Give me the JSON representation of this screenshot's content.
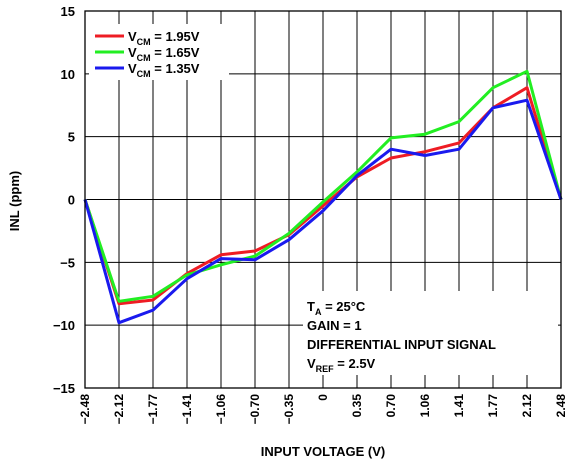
{
  "chart_data": {
    "type": "line",
    "title": "",
    "xlabel": "INPUT VOLTAGE (V)",
    "ylabel": "INL (ppm)",
    "ylim": [
      -15,
      15
    ],
    "yticks": [
      -15,
      -10,
      -5,
      0,
      5,
      10,
      15
    ],
    "ytick_labels": [
      "−15",
      "−10",
      "−5",
      "0",
      "5",
      "10",
      "15"
    ],
    "x": [
      "-2.48",
      "-2.12",
      "-1.77",
      "-1.41",
      "-1.06",
      "-0.70",
      "-0.35",
      "0",
      "0.35",
      "0.70",
      "1.06",
      "1.41",
      "1.77",
      "2.12",
      "2.48"
    ],
    "xtick_labels": [
      "−2.48",
      "−2.12",
      "−1.77",
      "−1.41",
      "−1.06",
      "−0.70",
      "−0.35",
      "0",
      "0.35",
      "0.70",
      "1.06",
      "1.41",
      "1.77",
      "2.12",
      "2.48"
    ],
    "grid": true,
    "legend_position": "top-left",
    "series": [
      {
        "name": "V_CM = 1.95V",
        "name_main": "V",
        "name_sub": "CM",
        "name_rest": " = 1.95V",
        "color": "#ee1c24",
        "values": [
          0,
          -8.3,
          -8.0,
          -5.9,
          -4.4,
          -4.1,
          -2.8,
          -0.5,
          1.8,
          3.3,
          3.8,
          4.5,
          7.3,
          8.9,
          0
        ]
      },
      {
        "name": "V_CM = 1.65V",
        "name_main": "V",
        "name_sub": "CM",
        "name_rest": " = 1.65V",
        "color": "#22ee22",
        "values": [
          0,
          -8.1,
          -7.7,
          -6.0,
          -5.2,
          -4.5,
          -2.7,
          -0.2,
          2.2,
          4.9,
          5.2,
          6.2,
          8.9,
          10.2,
          0
        ]
      },
      {
        "name": "V_CM = 1.35V",
        "name_main": "V",
        "name_sub": "CM",
        "name_rest": " = 1.35V",
        "color": "#1a1aee",
        "values": [
          0,
          -9.8,
          -8.8,
          -6.3,
          -4.7,
          -4.8,
          -3.2,
          -0.9,
          1.9,
          4.0,
          3.5,
          4.0,
          7.3,
          7.9,
          0
        ]
      }
    ],
    "annotations": {
      "ta_main": "T",
      "ta_sub": "A",
      "ta_rest": " = 25°C",
      "gain": "GAIN = 1",
      "signal": "DIFFERENTIAL INPUT SIGNAL",
      "vref_main": "V",
      "vref_sub": "REF",
      "vref_rest": " = 2.5V"
    }
  }
}
